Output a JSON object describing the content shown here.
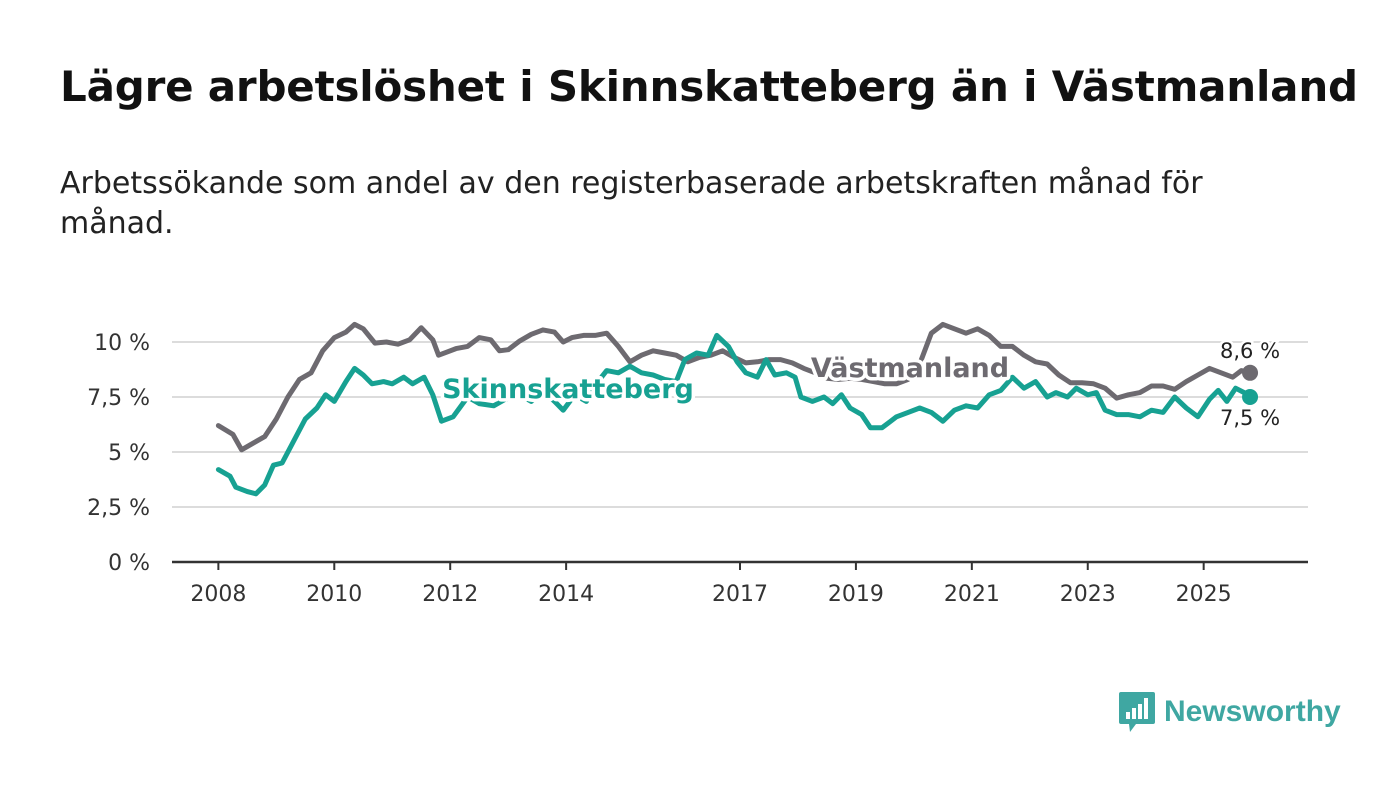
{
  "title": "Lägre arbetslöshet i Skinnskatteberg än i Västmanland",
  "subtitle": "Arbetssökande som andel av den registerbaserade arbetskraften månad för månad.",
  "brand": {
    "name": "Newsworthy",
    "color": "#3fa7a2",
    "icon": "newsworthy-logo-icon"
  },
  "chart_data": {
    "type": "line",
    "title": "Lägre arbetslöshet i Skinnskatteberg än i Västmanland",
    "xlabel": "",
    "ylabel": "",
    "ylim": [
      0,
      10
    ],
    "xlim": [
      2007.2,
      2026.8
    ],
    "grid": true,
    "y_ticks": [
      {
        "value": 0,
        "label": "0 %"
      },
      {
        "value": 2.5,
        "label": "2,5 %"
      },
      {
        "value": 5,
        "label": "5 %"
      },
      {
        "value": 7.5,
        "label": "7,5 %"
      },
      {
        "value": 10,
        "label": "10 %"
      }
    ],
    "x_ticks": [
      {
        "value": 2008,
        "label": "2008"
      },
      {
        "value": 2010,
        "label": "2010"
      },
      {
        "value": 2012,
        "label": "2012"
      },
      {
        "value": 2014,
        "label": "2014"
      },
      {
        "value": 2017,
        "label": "2017"
      },
      {
        "value": 2019,
        "label": "2019"
      },
      {
        "value": 2021,
        "label": "2021"
      },
      {
        "value": 2023,
        "label": "2023"
      },
      {
        "value": 2025,
        "label": "2025"
      }
    ],
    "series": [
      {
        "name": "Västmanland",
        "color": "#6d6a70",
        "end_label": "8,6 %",
        "points": [
          [
            2008.0,
            6.2
          ],
          [
            2008.25,
            5.8
          ],
          [
            2008.4,
            5.1
          ],
          [
            2008.6,
            5.4
          ],
          [
            2008.8,
            5.7
          ],
          [
            2009.0,
            6.5
          ],
          [
            2009.2,
            7.5
          ],
          [
            2009.4,
            8.3
          ],
          [
            2009.6,
            8.6
          ],
          [
            2009.8,
            9.6
          ],
          [
            2010.0,
            10.2
          ],
          [
            2010.2,
            10.45
          ],
          [
            2010.35,
            10.8
          ],
          [
            2010.5,
            10.6
          ],
          [
            2010.7,
            9.95
          ],
          [
            2010.9,
            10.0
          ],
          [
            2011.1,
            9.9
          ],
          [
            2011.3,
            10.1
          ],
          [
            2011.5,
            10.65
          ],
          [
            2011.7,
            10.1
          ],
          [
            2011.8,
            9.4
          ],
          [
            2011.95,
            9.55
          ],
          [
            2012.1,
            9.7
          ],
          [
            2012.3,
            9.8
          ],
          [
            2012.5,
            10.2
          ],
          [
            2012.7,
            10.1
          ],
          [
            2012.85,
            9.6
          ],
          [
            2013.0,
            9.65
          ],
          [
            2013.2,
            10.05
          ],
          [
            2013.4,
            10.35
          ],
          [
            2013.6,
            10.55
          ],
          [
            2013.8,
            10.45
          ],
          [
            2013.95,
            10.0
          ],
          [
            2014.1,
            10.2
          ],
          [
            2014.3,
            10.3
          ],
          [
            2014.5,
            10.3
          ],
          [
            2014.7,
            10.4
          ],
          [
            2014.9,
            9.8
          ],
          [
            2015.1,
            9.1
          ],
          [
            2015.3,
            9.4
          ],
          [
            2015.5,
            9.6
          ],
          [
            2015.7,
            9.5
          ],
          [
            2015.9,
            9.4
          ],
          [
            2016.1,
            9.1
          ],
          [
            2016.3,
            9.3
          ],
          [
            2016.5,
            9.4
          ],
          [
            2016.7,
            9.6
          ],
          [
            2016.9,
            9.3
          ],
          [
            2017.1,
            9.05
          ],
          [
            2017.3,
            9.1
          ],
          [
            2017.5,
            9.2
          ],
          [
            2017.7,
            9.2
          ],
          [
            2017.9,
            9.05
          ],
          [
            2018.1,
            8.8
          ],
          [
            2018.3,
            8.6
          ],
          [
            2018.5,
            8.35
          ],
          [
            2018.7,
            8.3
          ],
          [
            2018.9,
            8.35
          ],
          [
            2019.1,
            8.3
          ],
          [
            2019.3,
            8.2
          ],
          [
            2019.5,
            8.1
          ],
          [
            2019.7,
            8.1
          ],
          [
            2019.9,
            8.3
          ],
          [
            2020.1,
            9.0
          ],
          [
            2020.3,
            10.4
          ],
          [
            2020.5,
            10.8
          ],
          [
            2020.7,
            10.6
          ],
          [
            2020.9,
            10.4
          ],
          [
            2021.1,
            10.6
          ],
          [
            2021.3,
            10.3
          ],
          [
            2021.5,
            9.8
          ],
          [
            2021.7,
            9.8
          ],
          [
            2021.9,
            9.4
          ],
          [
            2022.1,
            9.1
          ],
          [
            2022.3,
            9.0
          ],
          [
            2022.5,
            8.5
          ],
          [
            2022.7,
            8.15
          ],
          [
            2022.9,
            8.15
          ],
          [
            2023.1,
            8.1
          ],
          [
            2023.3,
            7.9
          ],
          [
            2023.5,
            7.45
          ],
          [
            2023.7,
            7.6
          ],
          [
            2023.9,
            7.7
          ],
          [
            2024.1,
            8.0
          ],
          [
            2024.3,
            8.0
          ],
          [
            2024.5,
            7.85
          ],
          [
            2024.7,
            8.2
          ],
          [
            2024.9,
            8.5
          ],
          [
            2025.1,
            8.8
          ],
          [
            2025.3,
            8.6
          ],
          [
            2025.5,
            8.4
          ],
          [
            2025.65,
            8.7
          ],
          [
            2025.8,
            8.6
          ]
        ]
      },
      {
        "name": "Skinnskatteberg",
        "color": "#17a192",
        "end_label": "7,5 %",
        "points": [
          [
            2008.0,
            4.2
          ],
          [
            2008.2,
            3.9
          ],
          [
            2008.3,
            3.4
          ],
          [
            2008.5,
            3.2
          ],
          [
            2008.65,
            3.1
          ],
          [
            2008.8,
            3.5
          ],
          [
            2008.95,
            4.4
          ],
          [
            2009.1,
            4.5
          ],
          [
            2009.3,
            5.5
          ],
          [
            2009.5,
            6.5
          ],
          [
            2009.7,
            7.0
          ],
          [
            2009.85,
            7.6
          ],
          [
            2010.0,
            7.3
          ],
          [
            2010.2,
            8.2
          ],
          [
            2010.35,
            8.8
          ],
          [
            2010.5,
            8.5
          ],
          [
            2010.65,
            8.1
          ],
          [
            2010.85,
            8.2
          ],
          [
            2011.0,
            8.1
          ],
          [
            2011.2,
            8.4
          ],
          [
            2011.35,
            8.1
          ],
          [
            2011.55,
            8.4
          ],
          [
            2011.7,
            7.6
          ],
          [
            2011.85,
            6.4
          ],
          [
            2012.05,
            6.6
          ],
          [
            2012.3,
            7.5
          ],
          [
            2012.5,
            7.2
          ],
          [
            2012.75,
            7.1
          ],
          [
            2012.95,
            7.4
          ],
          [
            2013.2,
            7.6
          ],
          [
            2013.4,
            7.3
          ],
          [
            2013.6,
            7.8
          ],
          [
            2013.8,
            7.3
          ],
          [
            2013.95,
            6.9
          ],
          [
            2014.15,
            7.6
          ],
          [
            2014.35,
            7.3
          ],
          [
            2014.55,
            8.2
          ],
          [
            2014.7,
            8.7
          ],
          [
            2014.9,
            8.6
          ],
          [
            2015.1,
            8.9
          ],
          [
            2015.3,
            8.6
          ],
          [
            2015.5,
            8.5
          ],
          [
            2015.7,
            8.3
          ],
          [
            2015.9,
            8.2
          ],
          [
            2016.05,
            9.2
          ],
          [
            2016.25,
            9.5
          ],
          [
            2016.45,
            9.4
          ],
          [
            2016.6,
            10.3
          ],
          [
            2016.8,
            9.8
          ],
          [
            2016.95,
            9.1
          ],
          [
            2017.1,
            8.6
          ],
          [
            2017.3,
            8.4
          ],
          [
            2017.45,
            9.2
          ],
          [
            2017.6,
            8.5
          ],
          [
            2017.8,
            8.6
          ],
          [
            2017.95,
            8.4
          ],
          [
            2018.05,
            7.5
          ],
          [
            2018.25,
            7.3
          ],
          [
            2018.45,
            7.5
          ],
          [
            2018.6,
            7.2
          ],
          [
            2018.75,
            7.6
          ],
          [
            2018.9,
            7.0
          ],
          [
            2019.1,
            6.7
          ],
          [
            2019.25,
            6.1
          ],
          [
            2019.45,
            6.1
          ],
          [
            2019.7,
            6.6
          ],
          [
            2019.9,
            6.8
          ],
          [
            2020.1,
            7.0
          ],
          [
            2020.3,
            6.8
          ],
          [
            2020.5,
            6.4
          ],
          [
            2020.7,
            6.9
          ],
          [
            2020.9,
            7.1
          ],
          [
            2021.1,
            7.0
          ],
          [
            2021.3,
            7.6
          ],
          [
            2021.5,
            7.8
          ],
          [
            2021.7,
            8.4
          ],
          [
            2021.9,
            7.9
          ],
          [
            2022.1,
            8.2
          ],
          [
            2022.3,
            7.5
          ],
          [
            2022.45,
            7.7
          ],
          [
            2022.65,
            7.5
          ],
          [
            2022.8,
            7.9
          ],
          [
            2023.0,
            7.6
          ],
          [
            2023.15,
            7.7
          ],
          [
            2023.3,
            6.9
          ],
          [
            2023.5,
            6.7
          ],
          [
            2023.7,
            6.7
          ],
          [
            2023.9,
            6.6
          ],
          [
            2024.1,
            6.9
          ],
          [
            2024.3,
            6.8
          ],
          [
            2024.5,
            7.5
          ],
          [
            2024.7,
            7.0
          ],
          [
            2024.9,
            6.6
          ],
          [
            2025.1,
            7.4
          ],
          [
            2025.25,
            7.8
          ],
          [
            2025.4,
            7.3
          ],
          [
            2025.55,
            7.9
          ],
          [
            2025.7,
            7.7
          ],
          [
            2025.8,
            7.5
          ]
        ]
      }
    ]
  }
}
